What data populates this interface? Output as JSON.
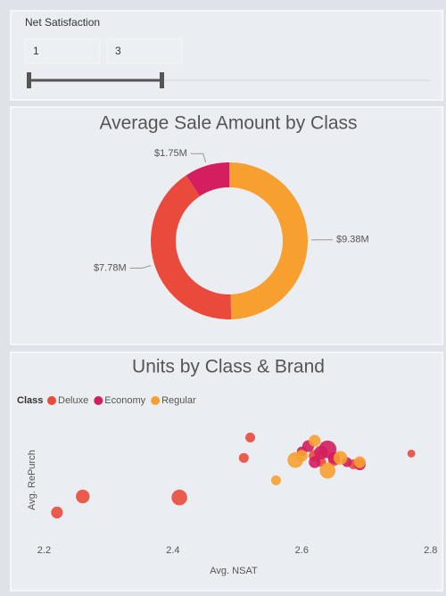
{
  "slicer": {
    "title": "Net Satisfaction",
    "min": "1",
    "max": "3"
  },
  "chart_data": [
    {
      "type": "donut",
      "title": "Average Sale Amount by Class",
      "categories": [
        "Regular",
        "Deluxe",
        "Economy"
      ],
      "values": [
        9.38,
        7.78,
        1.75
      ],
      "value_labels": [
        "$9.38M",
        "$7.78M",
        "$1.75M"
      ],
      "colors": [
        "#f7a030",
        "#ea4a3c",
        "#d41e5f"
      ]
    },
    {
      "type": "scatter",
      "title": "Units by Class & Brand",
      "legend_title": "Class",
      "x_label": "Avg. NSAT",
      "y_label": "Avg. RePurch",
      "xlim": [
        2.18,
        2.81
      ],
      "xticks": [
        2.2,
        2.4,
        2.6,
        2.8
      ],
      "ylim": [
        0,
        1
      ],
      "series": [
        {
          "name": "Deluxe",
          "color": "#ea4a3c",
          "x": [
            2.22,
            2.26,
            2.41,
            2.52,
            2.51,
            2.77,
            2.62,
            2.63,
            2.65,
            2.68
          ],
          "y": [
            0.13,
            0.28,
            0.27,
            0.83,
            0.64,
            0.68,
            0.66,
            0.6,
            0.62,
            0.58
          ],
          "sizes": [
            6,
            7,
            8,
            5,
            5,
            4,
            6,
            5,
            6,
            5
          ]
        },
        {
          "name": "Economy",
          "color": "#d41e5f",
          "x": [
            2.61,
            2.64,
            2.65,
            2.63,
            2.67,
            2.69,
            2.6,
            2.62
          ],
          "y": [
            0.75,
            0.72,
            0.64,
            0.69,
            0.6,
            0.58,
            0.7,
            0.6
          ],
          "sizes": [
            6,
            9,
            6,
            7,
            5,
            6,
            5,
            6
          ]
        },
        {
          "name": "Regular",
          "color": "#f7a030",
          "x": [
            2.56,
            2.59,
            2.64,
            2.66,
            2.62,
            2.69,
            2.6
          ],
          "y": [
            0.43,
            0.62,
            0.52,
            0.64,
            0.8,
            0.6,
            0.66
          ],
          "sizes": [
            5,
            8,
            8,
            7,
            6,
            6,
            6
          ]
        }
      ]
    }
  ]
}
